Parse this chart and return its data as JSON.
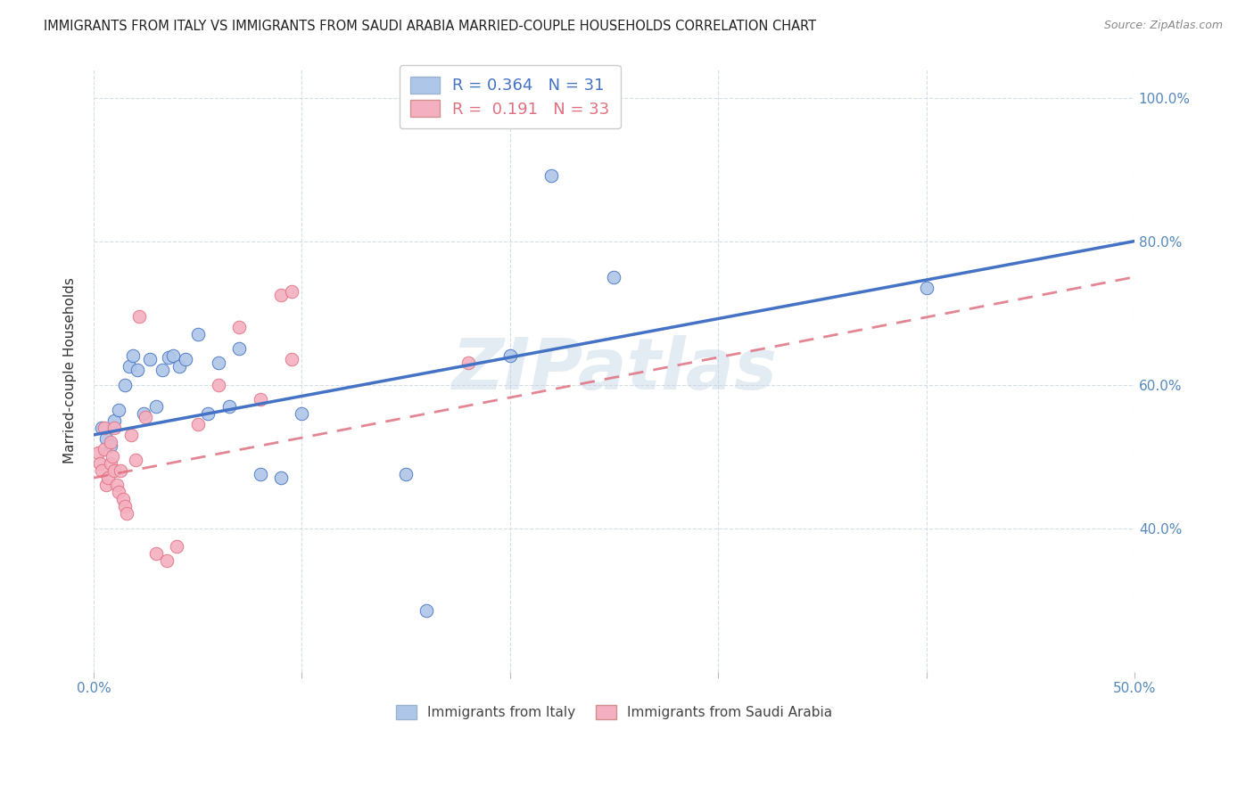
{
  "title": "IMMIGRANTS FROM ITALY VS IMMIGRANTS FROM SAUDI ARABIA MARRIED-COUPLE HOUSEHOLDS CORRELATION CHART",
  "source": "Source: ZipAtlas.com",
  "ylabel": "Married-couple Households",
  "xlim": [
    0.0,
    0.5
  ],
  "ylim": [
    0.2,
    1.04
  ],
  "xticks": [
    0.0,
    0.1,
    0.2,
    0.3,
    0.4,
    0.5
  ],
  "xticklabels": [
    "0.0%",
    "",
    "",
    "",
    "",
    "50.0%"
  ],
  "yticks": [
    0.4,
    0.6,
    0.8,
    1.0
  ],
  "yticklabels": [
    "40.0%",
    "60.0%",
    "80.0%",
    "100.0%"
  ],
  "legend_label1": "Immigrants from Italy",
  "legend_label2": "Immigrants from Saudi Arabia",
  "R1": "0.364",
  "N1": "31",
  "R2": "0.191",
  "N2": "33",
  "color_italy": "#aec6e8",
  "color_saudi": "#f4b0c0",
  "line_color_italy": "#4472c4",
  "line_color_saudi": "#e07080",
  "background_color": "#ffffff",
  "italy_line_x0": 0.0,
  "italy_line_y0": 0.53,
  "italy_line_x1": 0.5,
  "italy_line_y1": 0.8,
  "saudi_line_x0": 0.0,
  "saudi_line_y0": 0.47,
  "saudi_line_x1": 0.5,
  "saudi_line_y1": 0.75,
  "italy_x": [
    0.004,
    0.006,
    0.008,
    0.01,
    0.012,
    0.015,
    0.017,
    0.019,
    0.021,
    0.024,
    0.027,
    0.03,
    0.033,
    0.036,
    0.038,
    0.041,
    0.044,
    0.05,
    0.055,
    0.06,
    0.065,
    0.07,
    0.08,
    0.09,
    0.1,
    0.15,
    0.2,
    0.22,
    0.25,
    0.4,
    0.16
  ],
  "italy_y": [
    0.54,
    0.525,
    0.515,
    0.55,
    0.565,
    0.6,
    0.625,
    0.64,
    0.62,
    0.56,
    0.635,
    0.57,
    0.62,
    0.638,
    0.64,
    0.625,
    0.635,
    0.67,
    0.56,
    0.63,
    0.57,
    0.65,
    0.475,
    0.47,
    0.56,
    0.475,
    0.64,
    0.892,
    0.75,
    0.735,
    0.285
  ],
  "saudi_x": [
    0.002,
    0.003,
    0.004,
    0.005,
    0.005,
    0.006,
    0.007,
    0.008,
    0.008,
    0.009,
    0.01,
    0.01,
    0.011,
    0.012,
    0.013,
    0.014,
    0.015,
    0.016,
    0.018,
    0.02,
    0.022,
    0.025,
    0.03,
    0.035,
    0.04,
    0.05,
    0.06,
    0.07,
    0.08,
    0.09,
    0.095,
    0.18,
    0.095
  ],
  "saudi_y": [
    0.505,
    0.49,
    0.48,
    0.51,
    0.54,
    0.46,
    0.47,
    0.52,
    0.49,
    0.5,
    0.48,
    0.54,
    0.46,
    0.45,
    0.48,
    0.44,
    0.43,
    0.42,
    0.53,
    0.495,
    0.695,
    0.555,
    0.365,
    0.355,
    0.375,
    0.545,
    0.6,
    0.68,
    0.58,
    0.725,
    0.635,
    0.63,
    0.73
  ],
  "watermark": "ZIPatlas"
}
